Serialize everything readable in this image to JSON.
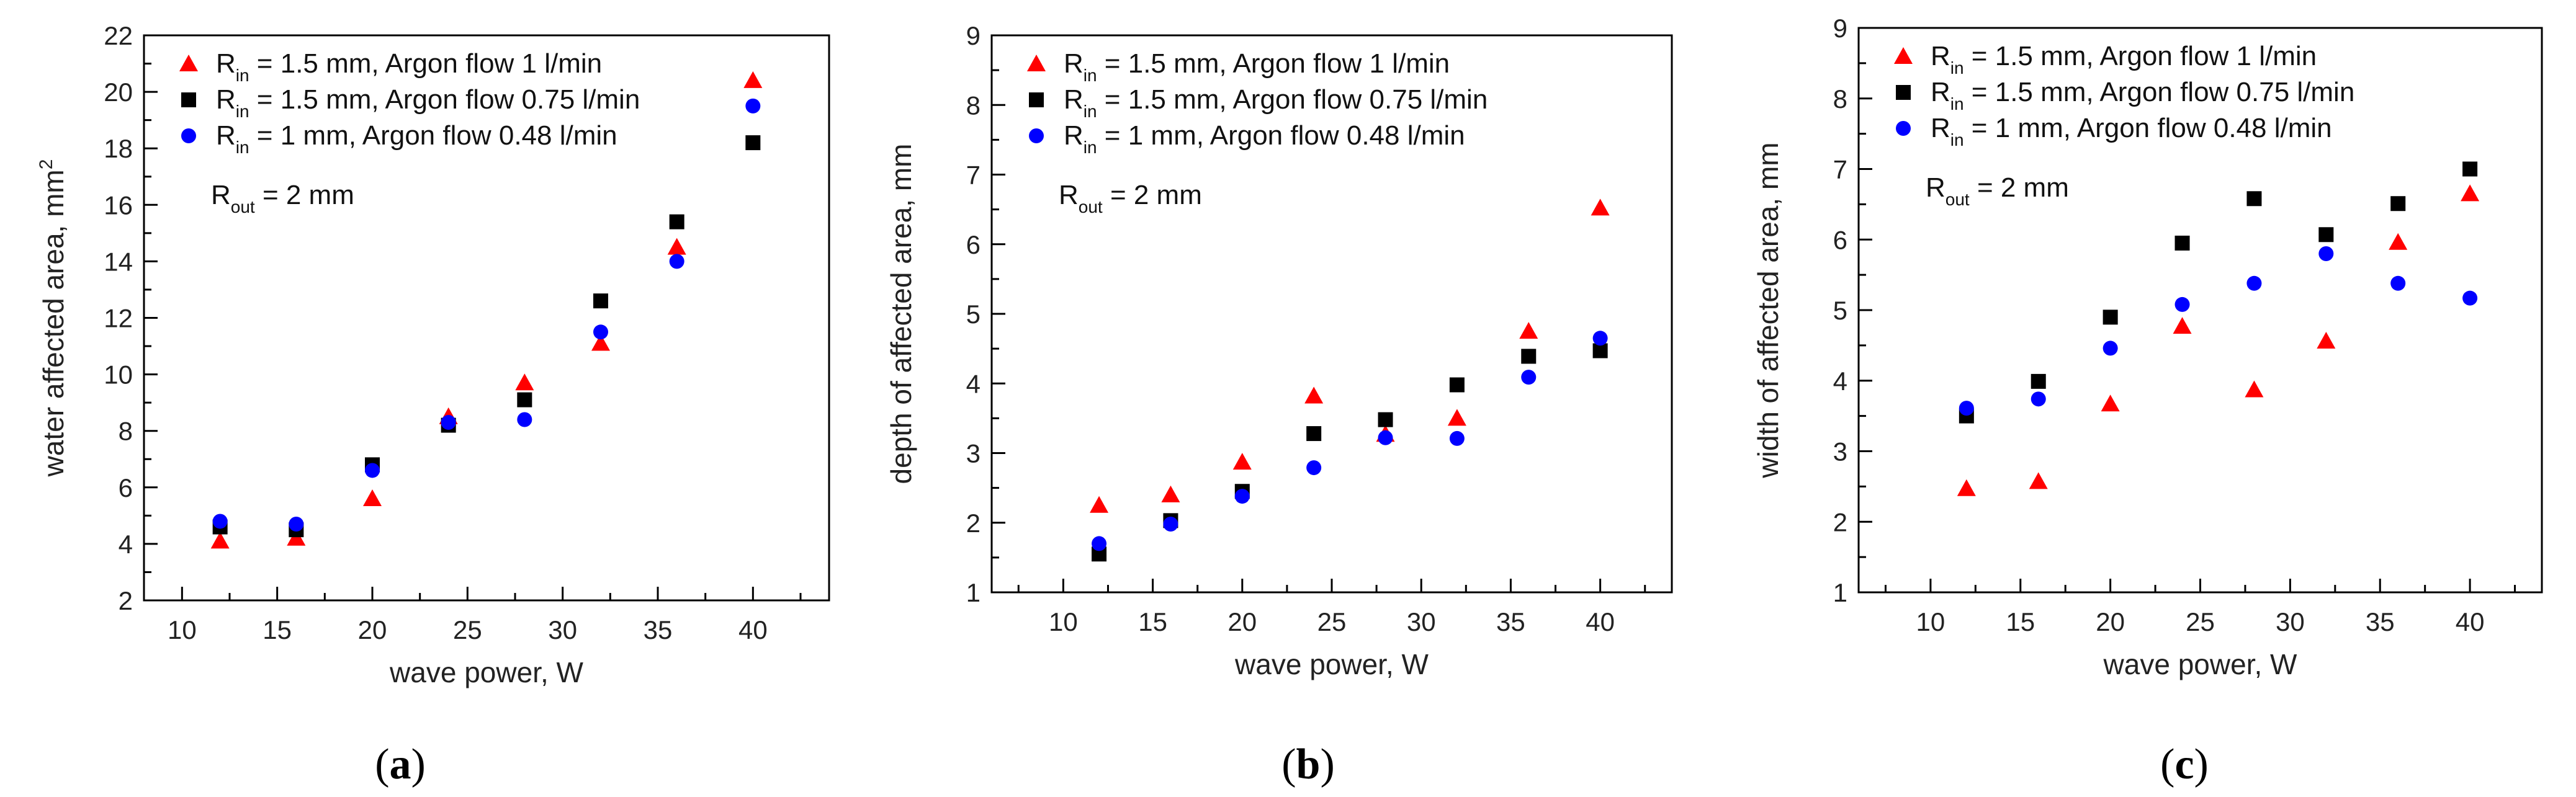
{
  "colors": {
    "series1": "#ff0000",
    "series2": "#000000",
    "series3": "#0000ff"
  },
  "chart_data": [
    {
      "type": "scatter",
      "panel": "(a)",
      "panel_letter": "a",
      "xlabel": "wave power, W",
      "ylabel": "water affected area, mm",
      "ylabel_sup": "2",
      "xlim": [
        8,
        44
      ],
      "ylim": [
        2,
        22
      ],
      "xticks": [
        10,
        15,
        20,
        25,
        30,
        35,
        40
      ],
      "yticks": [
        2,
        4,
        6,
        8,
        10,
        12,
        14,
        16,
        18,
        20,
        22
      ],
      "annotation": {
        "main": "R",
        "sub": "out",
        "rest": " = 2 mm"
      },
      "legend": [
        {
          "main": "R",
          "sub": "in",
          "rest": " = 1.5 mm, Argon flow 1 l/min",
          "marker": "triangle",
          "color": "#ff0000"
        },
        {
          "main": "R",
          "sub": "in",
          "rest": " = 1.5 mm, Argon flow 0.75 l/min",
          "marker": "square",
          "color": "#000000"
        },
        {
          "main": "R",
          "sub": "in",
          "rest": " = 1 mm, Argon flow 0.48 l/min",
          "marker": "circle",
          "color": "#0000ff"
        }
      ],
      "series": [
        {
          "name": "Rin = 1.5 mm, Argon flow 1 l/min",
          "marker": "triangle",
          "color": "#ff0000",
          "x": [
            12,
            16,
            20,
            24,
            28,
            32,
            36,
            40
          ],
          "y": [
            4.1,
            4.2,
            5.6,
            8.5,
            9.7,
            11.1,
            14.5,
            20.4
          ]
        },
        {
          "name": "Rin = 1.5 mm, Argon flow 0.75 l/min",
          "marker": "square",
          "color": "#000000",
          "x": [
            12,
            16,
            20,
            24,
            28,
            32,
            36,
            40
          ],
          "y": [
            4.6,
            4.5,
            6.8,
            8.2,
            9.1,
            12.6,
            15.4,
            18.2
          ]
        },
        {
          "name": "Rin = 1 mm, Argon flow 0.48 l/min",
          "marker": "circle",
          "color": "#0000ff",
          "x": [
            12,
            16,
            20,
            24,
            28,
            32,
            36,
            40
          ],
          "y": [
            4.8,
            4.7,
            6.6,
            8.3,
            8.4,
            11.5,
            14.0,
            19.5
          ]
        }
      ]
    },
    {
      "type": "scatter",
      "panel": "(b)",
      "panel_letter": "b",
      "xlabel": "wave power, W",
      "ylabel": "depth of affected area, mm",
      "ylabel_sup": "",
      "xlim": [
        6,
        44
      ],
      "ylim": [
        1,
        9
      ],
      "xticks": [
        10,
        15,
        20,
        25,
        30,
        35,
        40
      ],
      "yticks": [
        1,
        2,
        3,
        4,
        5,
        6,
        7,
        8,
        9
      ],
      "annotation": {
        "main": "R",
        "sub": "out",
        "rest": " = 2 mm"
      },
      "legend": [
        {
          "main": "R",
          "sub": "in",
          "rest": " = 1.5 mm, Argon flow 1 l/min",
          "marker": "triangle",
          "color": "#ff0000"
        },
        {
          "main": "R",
          "sub": "in",
          "rest": " = 1.5 mm, Argon flow 0.75 l/min",
          "marker": "square",
          "color": "#000000"
        },
        {
          "main": "R",
          "sub": "in",
          "rest": " = 1 mm, Argon flow 0.48 l/min",
          "marker": "circle",
          "color": "#0000ff"
        }
      ],
      "series": [
        {
          "name": "Rin = 1.5 mm, Argon flow 1 l/min",
          "marker": "triangle",
          "color": "#ff0000",
          "x": [
            12,
            16,
            20,
            24,
            28,
            32,
            36,
            40
          ],
          "y": [
            2.25,
            2.4,
            2.87,
            3.82,
            3.27,
            3.5,
            4.75,
            6.52
          ]
        },
        {
          "name": "Rin = 1.5 mm, Argon flow 0.75 l/min",
          "marker": "square",
          "color": "#000000",
          "x": [
            12,
            16,
            20,
            24,
            28,
            32,
            36,
            40
          ],
          "y": [
            1.55,
            2.03,
            2.45,
            3.28,
            3.48,
            3.98,
            4.39,
            4.47
          ]
        },
        {
          "name": "Rin = 1 mm, Argon flow 0.48 l/min",
          "marker": "circle",
          "color": "#0000ff",
          "x": [
            12,
            16,
            20,
            24,
            28,
            32,
            36,
            40
          ],
          "y": [
            1.7,
            1.98,
            2.38,
            2.79,
            3.22,
            3.21,
            4.09,
            4.65
          ]
        }
      ]
    },
    {
      "type": "scatter",
      "panel": "(c)",
      "panel_letter": "c",
      "xlabel": "wave power, W",
      "ylabel": "width of affected area, mm",
      "ylabel_sup": "",
      "xlim": [
        6,
        44
      ],
      "ylim": [
        1,
        9
      ],
      "xticks": [
        10,
        15,
        20,
        25,
        30,
        35,
        40
      ],
      "yticks": [
        1,
        2,
        3,
        4,
        5,
        6,
        7,
        8,
        9
      ],
      "annotation": {
        "main": "R",
        "sub": "out",
        "rest": " = 2 mm"
      },
      "legend": [
        {
          "main": "R",
          "sub": "in",
          "rest": " = 1.5 mm, Argon flow 1 l/min",
          "marker": "triangle",
          "color": "#ff0000"
        },
        {
          "main": "R",
          "sub": "in",
          "rest": " = 1.5 mm, Argon flow 0.75 l/min",
          "marker": "square",
          "color": "#000000"
        },
        {
          "main": "R",
          "sub": "in",
          "rest": " = 1 mm, Argon flow 0.48 l/min",
          "marker": "circle",
          "color": "#0000ff"
        }
      ],
      "series": [
        {
          "name": "Rin = 1.5 mm, Argon flow 1 l/min",
          "marker": "triangle",
          "color": "#ff0000",
          "x": [
            12,
            16,
            20,
            24,
            28,
            32,
            36,
            40
          ],
          "y": [
            2.47,
            2.57,
            3.67,
            4.77,
            3.87,
            4.56,
            5.96,
            6.65
          ]
        },
        {
          "name": "Rin = 1.5 mm, Argon flow 0.75 l/min",
          "marker": "square",
          "color": "#000000",
          "x": [
            12,
            16,
            20,
            24,
            28,
            32,
            36,
            40
          ],
          "y": [
            3.5,
            3.99,
            4.9,
            5.95,
            6.58,
            6.07,
            6.51,
            7.0
          ]
        },
        {
          "name": "Rin = 1 mm, Argon flow 0.48 l/min",
          "marker": "circle",
          "color": "#0000ff",
          "x": [
            12,
            16,
            20,
            24,
            28,
            32,
            36,
            40
          ],
          "y": [
            3.61,
            3.74,
            4.46,
            5.08,
            5.38,
            5.8,
            5.38,
            5.17
          ]
        }
      ]
    }
  ]
}
